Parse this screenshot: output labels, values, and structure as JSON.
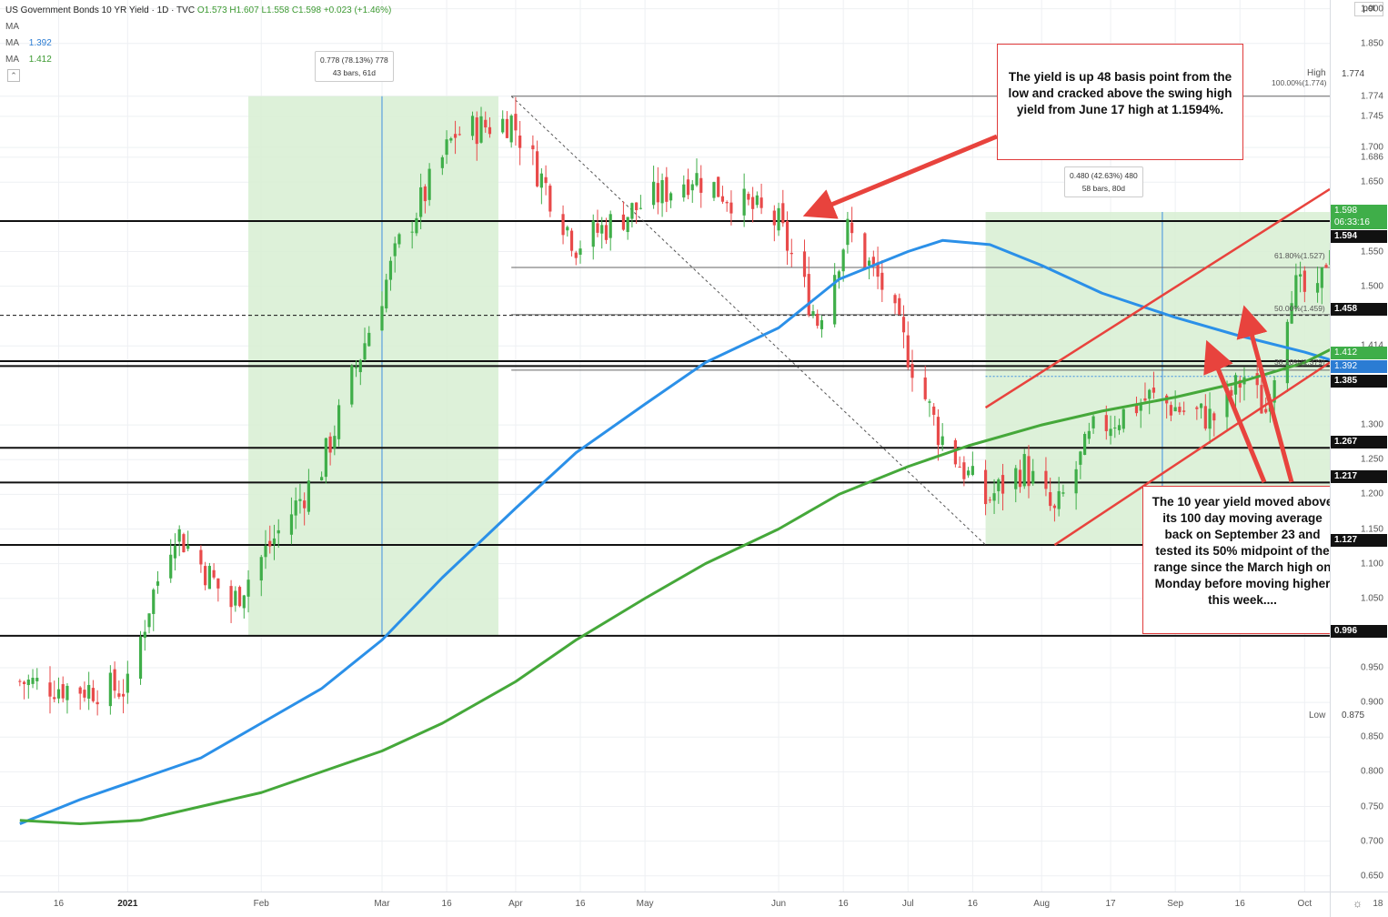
{
  "header": {
    "symbol": "US Government Bonds 10 YR Yield · 1D · TVC",
    "ohlc": "O1.573 H1.607 L1.558 C1.598 +0.023 (+1.46%)",
    "ma_rows": [
      {
        "label": "MA",
        "value": ""
      },
      {
        "label": "MA",
        "value": "1.392"
      },
      {
        "label": "MA",
        "value": "1.412"
      }
    ]
  },
  "axis": {
    "unit": "pct",
    "price_ticks": [
      "1.900",
      "1.850",
      "1.774",
      "1.745",
      "1.700",
      "1.686",
      "1.650",
      "1.550",
      "1.500",
      "1.414",
      "1.300",
      "1.250",
      "1.200",
      "1.150",
      "1.100",
      "1.050",
      "0.950",
      "0.900",
      "0.850",
      "0.800",
      "0.750",
      "0.700",
      "0.650"
    ],
    "time_ticks": [
      "16",
      "2021",
      "Feb",
      "Mar",
      "16",
      "Apr",
      "16",
      "May",
      "Jun",
      "16",
      "Jul",
      "16",
      "Aug",
      "17",
      "Sep",
      "16",
      "Oct",
      "18"
    ],
    "time_bold": [
      "2021"
    ]
  },
  "price_badges": {
    "current": {
      "value": "1.598",
      "timer": "06:33:16",
      "color": "#3fae49"
    },
    "level_1594": {
      "value": "1.594"
    },
    "level_1458": {
      "value": "1.458"
    },
    "ma_green": {
      "value": "1.412",
      "color": "#3fae49"
    },
    "ma_blue": {
      "value": "1.392",
      "color": "#2b7cd3"
    },
    "level_1385": {
      "value": "1.385"
    },
    "level_1267": {
      "value": "1.267"
    },
    "level_1217": {
      "value": "1.217"
    },
    "level_1127": {
      "value": "1.127"
    },
    "level_0996": {
      "value": "0.996"
    }
  },
  "high_low": {
    "high_label": "High",
    "high_value": "1.774",
    "low_label": "Low",
    "low_value": "0.875"
  },
  "measures": [
    {
      "line1": "0.778 (78.13%) 778",
      "line2": "43 bars, 61d"
    },
    {
      "line1": "0.480 (42.63%) 480",
      "line2": "58 bars, 80d"
    }
  ],
  "fib_levels": [
    "100.00%(1.774)",
    "61.80%(1.527)",
    "50.00%(1.459)",
    "38.20%(1.379)"
  ],
  "annotations": {
    "top": "The yield is up 48 basis point from the low and cracked above the swing high yield from June 17 high at 1.1594%.",
    "bottom": "The 10 year yield moved above its 100 day moving average back on September 23 and tested its 50% midpoint of the range since the March high on Monday before moving higher this week...."
  },
  "colors": {
    "up": "#3fae49",
    "down": "#e84a4a",
    "ma100": "#2b90e8",
    "ma200": "#45a83a",
    "annotation": "#e03a3a",
    "zone": "#d7efd2"
  },
  "chart_data": {
    "type": "candlestick",
    "title": "US Government Bonds 10 YR Yield",
    "y_unit": "pct",
    "ylim": [
      0.63,
      1.91
    ],
    "x_range": [
      "2020-12-07",
      "2021-10-27"
    ],
    "horizontal_levels": [
      1.594,
      1.458,
      1.392,
      1.385,
      1.267,
      1.217,
      1.127,
      0.996
    ],
    "fib_retracements": {
      "100%": 1.774,
      "61.8%": 1.527,
      "50%": 1.459,
      "38.2%": 1.379
    },
    "series": [
      {
        "name": "MA",
        "color": "#2b90e8",
        "x": [
          "2020-12-07",
          "2020-12-21",
          "2021-01-04",
          "2021-01-18",
          "2021-02-01",
          "2021-02-15",
          "2021-03-01",
          "2021-03-15",
          "2021-04-01",
          "2021-04-15",
          "2021-05-01",
          "2021-05-15",
          "2021-06-01",
          "2021-06-15",
          "2021-07-01",
          "2021-07-09",
          "2021-07-20",
          "2021-08-01",
          "2021-08-15",
          "2021-09-01",
          "2021-09-15",
          "2021-10-01",
          "2021-10-08"
        ],
        "values": [
          0.725,
          0.76,
          0.79,
          0.82,
          0.87,
          0.92,
          0.99,
          1.08,
          1.18,
          1.26,
          1.33,
          1.39,
          1.44,
          1.51,
          1.55,
          1.566,
          1.56,
          1.53,
          1.49,
          1.455,
          1.43,
          1.405,
          1.392
        ]
      },
      {
        "name": "MA",
        "color": "#45a83a",
        "x": [
          "2020-12-07",
          "2020-12-21",
          "2021-01-04",
          "2021-01-18",
          "2021-02-01",
          "2021-02-15",
          "2021-03-01",
          "2021-03-15",
          "2021-04-01",
          "2021-04-15",
          "2021-05-01",
          "2021-05-15",
          "2021-06-01",
          "2021-06-15",
          "2021-07-01",
          "2021-07-15",
          "2021-08-01",
          "2021-08-15",
          "2021-09-01",
          "2021-09-15",
          "2021-10-01",
          "2021-10-08"
        ],
        "values": [
          0.73,
          0.725,
          0.73,
          0.75,
          0.77,
          0.8,
          0.83,
          0.87,
          0.93,
          0.99,
          1.05,
          1.1,
          1.15,
          1.2,
          1.24,
          1.27,
          1.3,
          1.32,
          1.34,
          1.36,
          1.39,
          1.412
        ]
      }
    ]
  }
}
